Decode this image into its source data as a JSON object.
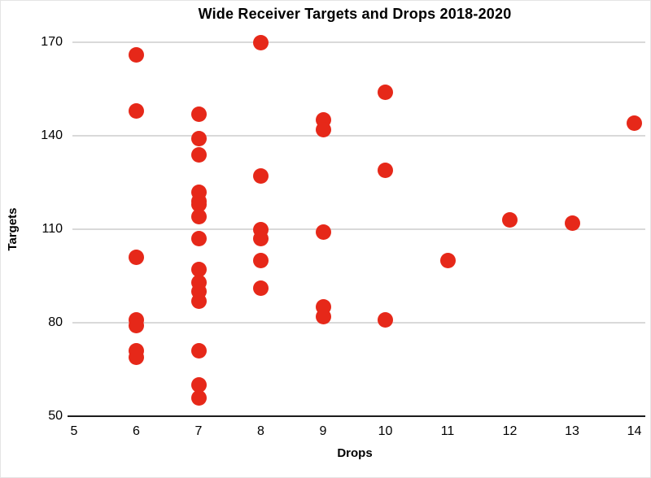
{
  "chart_data": {
    "type": "scatter",
    "title": "Wide Receiver Targets and Drops 2018-2020",
    "xlabel": "Drops",
    "ylabel": "Targets",
    "xlim": [
      5,
      14
    ],
    "ylim": [
      50,
      170
    ],
    "x_ticks": [
      5,
      6,
      7,
      8,
      9,
      10,
      11,
      12,
      13,
      14
    ],
    "y_ticks": [
      50,
      80,
      110,
      140,
      170
    ],
    "grid": "horizontal-only",
    "legend": "none",
    "point_color": "#e62819",
    "gridline_color": "#d9d9d9",
    "axis_color": "#1c1c1c",
    "text_color": "#000000",
    "points": [
      {
        "drops": 6,
        "targets": 166
      },
      {
        "drops": 6,
        "targets": 148
      },
      {
        "drops": 6,
        "targets": 101
      },
      {
        "drops": 6,
        "targets": 81
      },
      {
        "drops": 6,
        "targets": 79
      },
      {
        "drops": 6,
        "targets": 71
      },
      {
        "drops": 6,
        "targets": 69
      },
      {
        "drops": 7,
        "targets": 147
      },
      {
        "drops": 7,
        "targets": 139
      },
      {
        "drops": 7,
        "targets": 134
      },
      {
        "drops": 7,
        "targets": 122
      },
      {
        "drops": 7,
        "targets": 119
      },
      {
        "drops": 7,
        "targets": 118
      },
      {
        "drops": 7,
        "targets": 114
      },
      {
        "drops": 7,
        "targets": 107
      },
      {
        "drops": 7,
        "targets": 97
      },
      {
        "drops": 7,
        "targets": 93
      },
      {
        "drops": 7,
        "targets": 90
      },
      {
        "drops": 7,
        "targets": 87
      },
      {
        "drops": 7,
        "targets": 71
      },
      {
        "drops": 7,
        "targets": 60
      },
      {
        "drops": 7,
        "targets": 56
      },
      {
        "drops": 8,
        "targets": 170
      },
      {
        "drops": 8,
        "targets": 127
      },
      {
        "drops": 8,
        "targets": 110
      },
      {
        "drops": 8,
        "targets": 107
      },
      {
        "drops": 8,
        "targets": 100
      },
      {
        "drops": 8,
        "targets": 91
      },
      {
        "drops": 9,
        "targets": 145
      },
      {
        "drops": 9,
        "targets": 142
      },
      {
        "drops": 9,
        "targets": 109
      },
      {
        "drops": 9,
        "targets": 85
      },
      {
        "drops": 9,
        "targets": 82
      },
      {
        "drops": 10,
        "targets": 154
      },
      {
        "drops": 10,
        "targets": 129
      },
      {
        "drops": 10,
        "targets": 81
      },
      {
        "drops": 11,
        "targets": 100
      },
      {
        "drops": 12,
        "targets": 113
      },
      {
        "drops": 13,
        "targets": 112
      },
      {
        "drops": 14,
        "targets": 144
      }
    ]
  }
}
